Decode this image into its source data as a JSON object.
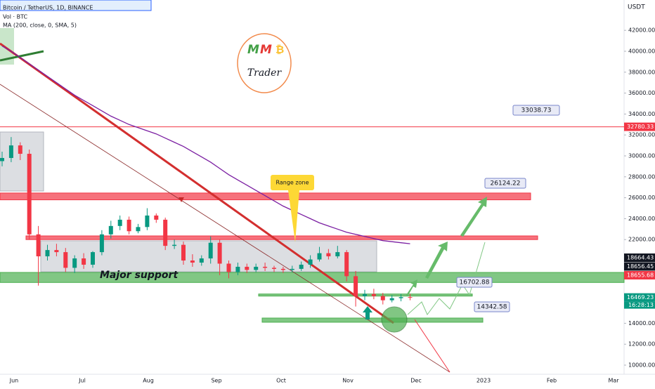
{
  "chart_data": {
    "type": "candlestick",
    "title": "Bitcoin / TetherUS, 1D, BINANCE",
    "indicators": [
      "Vol · BTC",
      "MA (200, close, 0, SMA, 5)"
    ],
    "currency": "USDT",
    "up_color": "#089981",
    "down_color": "#f23645",
    "open": [
      29500,
      29800,
      31000,
      30200,
      22500,
      20400,
      21000,
      20800,
      19300,
      20200,
      19600,
      20800,
      22500,
      23300,
      23900,
      22800,
      23200,
      24300,
      23900,
      21400,
      21500,
      20000,
      19800,
      20200,
      21700,
      19700,
      18900,
      19400,
      19100,
      19400,
      19300,
      19200,
      19100,
      19200,
      19600,
      20100,
      20700,
      20400,
      20800,
      18500,
      16600,
      16800,
      16600,
      16200,
      16400,
      16500
    ],
    "high": [
      30400,
      31800,
      31300,
      30600,
      23300,
      21500,
      21600,
      21200,
      20500,
      20700,
      20900,
      22900,
      23800,
      24300,
      24200,
      23500,
      25000,
      24500,
      24100,
      22000,
      21800,
      20600,
      20500,
      22300,
      22000,
      20000,
      19800,
      19700,
      19700,
      19800,
      19500,
      19400,
      19500,
      19900,
      20500,
      21300,
      21100,
      21400,
      21000,
      19000,
      17200,
      17300,
      16900,
      16700,
      16800,
      16800
    ],
    "low": [
      29000,
      29400,
      29600,
      22000,
      17600,
      20000,
      20400,
      18900,
      18800,
      19200,
      19300,
      20500,
      22100,
      22900,
      22500,
      22600,
      22900,
      23600,
      21000,
      21100,
      19600,
      19400,
      19500,
      19700,
      18600,
      18300,
      18600,
      18800,
      18900,
      19000,
      18900,
      18800,
      18900,
      19000,
      19300,
      19900,
      20100,
      20200,
      18000,
      15600,
      16200,
      16300,
      15800,
      16000,
      16100,
      16200
    ],
    "close": [
      29800,
      31000,
      30200,
      22500,
      20400,
      21000,
      20800,
      19300,
      20200,
      19600,
      20800,
      22500,
      23300,
      23900,
      22800,
      23200,
      24300,
      23900,
      21400,
      21500,
      20000,
      19800,
      20200,
      21700,
      19700,
      18900,
      19400,
      19100,
      19400,
      19300,
      19200,
      19100,
      19200,
      19600,
      20100,
      20700,
      20400,
      20800,
      18500,
      16600,
      16800,
      16600,
      16200,
      16400,
      16500,
      16469.23
    ],
    "ma": {
      "color": "#7b1fa2",
      "values": [
        40500,
        40000,
        39400,
        38800,
        38200,
        37600,
        37000,
        36400,
        35800,
        35300,
        34800,
        34300,
        33800,
        33400,
        33000,
        32700,
        32400,
        32100,
        31700,
        31300,
        30900,
        30400,
        29900,
        29400,
        28800,
        28200,
        27700,
        27200,
        26700,
        26200,
        25700,
        25200,
        24800,
        24400,
        24000,
        23600,
        23300,
        23000,
        22700,
        22500,
        22300,
        22100,
        21900,
        21800,
        21700,
        21600
      ]
    },
    "ylim": [
      9128,
      44899
    ],
    "yticks": [
      {
        "value": 42000,
        "label": "42000.00"
      },
      {
        "value": 40000,
        "label": "40000.00"
      },
      {
        "value": 38000,
        "label": "38000.00"
      },
      {
        "value": 36000,
        "label": "36000.00"
      },
      {
        "value": 34000,
        "label": "34000.00"
      },
      {
        "value": 32000,
        "label": "32000.00"
      },
      {
        "value": 30000,
        "label": "30000.00"
      },
      {
        "value": 28000,
        "label": "28000.00"
      },
      {
        "value": 26000,
        "label": "26000.00"
      },
      {
        "value": 24000,
        "label": "24000.00"
      },
      {
        "value": 22000,
        "label": "22000.00"
      },
      {
        "value": 14000,
        "label": "14000.00"
      },
      {
        "value": 12000,
        "label": "12000.00"
      },
      {
        "value": 10000,
        "label": "10000.00"
      }
    ],
    "x_labels": [
      "Jun",
      "Jul",
      "Aug",
      "Sep",
      "Oct",
      "Nov",
      "Dec",
      "2023",
      "Feb",
      "Mar"
    ],
    "zones": [
      {
        "low": 26644,
        "high": 32281,
        "color": "#b2b5be"
      },
      {
        "low": 25800,
        "high": 26450,
        "color": "#f23645"
      },
      {
        "low": 22000,
        "high": 22350,
        "color": "#f23645"
      },
      {
        "low": 18926,
        "high": 21879,
        "color": "#b2b5be"
      },
      {
        "low": 17900,
        "high": 18860,
        "color": "#4caf50"
      },
      {
        "low": 16600,
        "high": 16800,
        "color": "#4caf50"
      },
      {
        "low": 14100,
        "high": 14500,
        "color": "#4caf50"
      }
    ],
    "level": {
      "value": 32780.33,
      "color": "#f23645"
    },
    "annotations": [
      33038.73,
      26124.22,
      16702.88,
      14342.58
    ],
    "range_label": "Range zone",
    "support_label": "Major support",
    "price_tags": [
      {
        "value": 32780.33,
        "color": "#f23645"
      },
      {
        "value": 18664.43,
        "color": "#131722"
      },
      {
        "value": 18656.45,
        "color": "#131722"
      },
      {
        "value": 18655.68,
        "color": "#f23645"
      },
      {
        "value": 16469.23,
        "color": "#089981"
      }
    ],
    "countdown": "16:28:13"
  },
  "logo": {
    "letters": [
      "M",
      "M",
      "₿"
    ],
    "name": "Trader"
  }
}
